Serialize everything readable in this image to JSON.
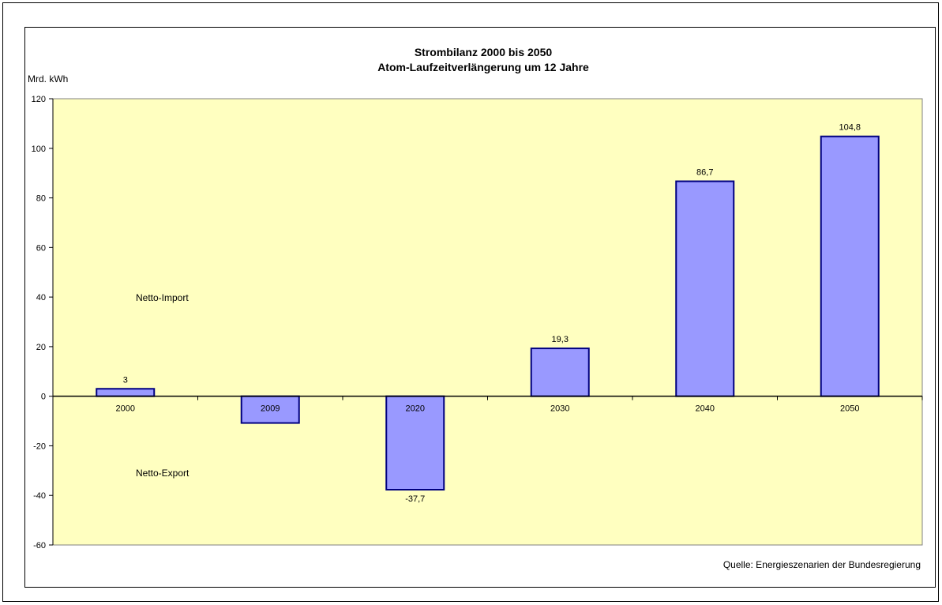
{
  "chart_data": {
    "type": "bar",
    "title": "Strombilanz 2000 bis 2050",
    "subtitle": "Atom-Laufzeitverlängerung um 12 Jahre",
    "ylabel": "Mrd. kWh",
    "xlabel": "",
    "categories": [
      "2000",
      "2009",
      "2020",
      "2030",
      "2040",
      "2050"
    ],
    "values": [
      3,
      -10.8,
      -37.7,
      19.3,
      86.7,
      104.8
    ],
    "data_labels": [
      "3",
      "",
      "-37,7",
      "19,3",
      "86,7",
      "104,8"
    ],
    "ylim": [
      -60,
      120
    ],
    "yticks": [
      120,
      100,
      80,
      60,
      40,
      20,
      0,
      -20,
      -40,
      -60
    ],
    "annotations": [
      "Netto-Import",
      "Netto-Export"
    ],
    "source": "Quelle: Energieszenarien der Bundesregierung",
    "grid": false,
    "legend": "none",
    "colors": {
      "plot_background": "#ffffc0",
      "bar_fill": "#9999ff",
      "bar_border": "#000080",
      "axis": "#000000"
    }
  }
}
